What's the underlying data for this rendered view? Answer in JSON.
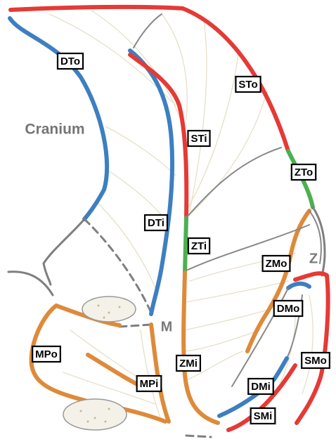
{
  "cranium": "Cranium",
  "letters": {
    "z": "Z",
    "m": "M"
  },
  "regions": [
    "DTo",
    "STo",
    "STi",
    "ZTo",
    "DTi",
    "ZTi",
    "ZMo",
    "DMo",
    "MPo",
    "ZMi",
    "MPi",
    "DMi",
    "SMo",
    "SMi"
  ]
}
